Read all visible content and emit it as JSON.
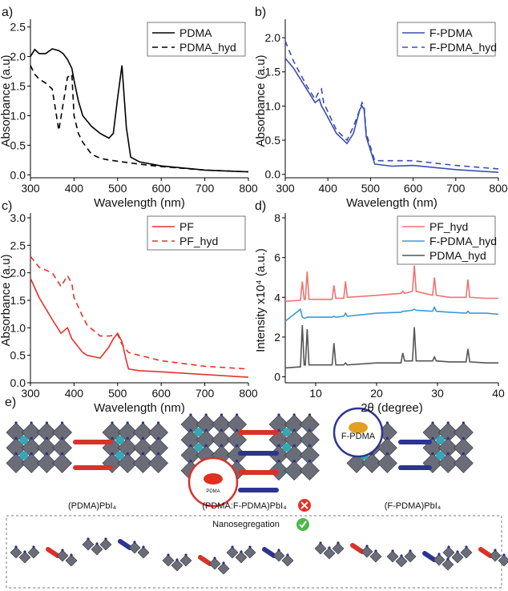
{
  "chart_data": [
    {
      "type": "line",
      "panel": "a)",
      "xlabel": "Wavelength (nm)",
      "ylabel": "Absorbance (a.u)",
      "x": [
        300,
        310,
        320,
        335,
        350,
        365,
        375,
        385,
        395,
        400,
        410,
        420,
        440,
        460,
        480,
        490,
        500,
        510,
        520,
        530,
        550,
        600,
        700,
        800
      ],
      "series": [
        {
          "name": "PDMA",
          "color": "#000000",
          "style": "solid",
          "values": [
            2.0,
            2.12,
            2.05,
            2.05,
            2.13,
            2.1,
            2.05,
            1.95,
            1.8,
            1.6,
            1.25,
            1.0,
            0.82,
            0.7,
            0.62,
            0.7,
            1.3,
            1.85,
            0.8,
            0.3,
            0.22,
            0.15,
            0.08,
            0.05
          ]
        },
        {
          "name": "PDMA_hyd",
          "color": "#000000",
          "style": "dashed",
          "values": [
            1.85,
            1.7,
            1.62,
            1.55,
            1.45,
            0.75,
            1.2,
            1.65,
            1.7,
            1.0,
            0.7,
            0.55,
            0.35,
            0.28,
            0.25,
            0.24,
            0.23,
            0.22,
            0.21,
            0.2,
            0.18,
            0.14,
            0.08,
            0.05
          ]
        }
      ],
      "xlim": [
        300,
        800
      ],
      "xticks": [
        300,
        400,
        500,
        600,
        700,
        800
      ],
      "ylim": [
        -0.05,
        2.55
      ],
      "yticks": [
        {
          "value": 0,
          "label": "0.0"
        },
        0.5,
        {
          "value": 1,
          "label": "1.0"
        },
        1.5,
        {
          "value": 2,
          "label": "2.0"
        },
        2.5
      ],
      "legend": "upper right"
    },
    {
      "type": "line",
      "panel": "b)",
      "xlabel": "Wavelength (nm)",
      "ylabel": "Absorbance (a.u)",
      "x": [
        300,
        320,
        350,
        370,
        380,
        385,
        390,
        420,
        445,
        460,
        475,
        480,
        485,
        490,
        510,
        550,
        600,
        700,
        800
      ],
      "series": [
        {
          "name": "F-PDMA",
          "color": "#3b4eaf",
          "style": "solid",
          "values": [
            1.7,
            1.55,
            1.25,
            1.05,
            1.1,
            1.0,
            0.95,
            0.6,
            0.45,
            0.6,
            0.95,
            1.0,
            0.95,
            0.55,
            0.15,
            0.12,
            0.13,
            0.07,
            0.03
          ]
        },
        {
          "name": "F-PDMA_hyd",
          "color": "#3b4eaf",
          "style": "dashed",
          "values": [
            1.95,
            1.65,
            1.3,
            1.1,
            1.22,
            1.25,
            1.05,
            0.65,
            0.5,
            0.7,
            0.95,
            1.05,
            1.0,
            0.6,
            0.2,
            0.2,
            0.2,
            0.13,
            0.08
          ]
        }
      ],
      "xlim": [
        300,
        800
      ],
      "xticks": [
        300,
        400,
        500,
        600,
        700,
        800
      ],
      "ylim": [
        -0.05,
        2.2
      ],
      "yticks": [
        {
          "value": 0,
          "label": "0.0"
        },
        0.5,
        {
          "value": 1,
          "label": "1.0"
        },
        1.5,
        {
          "value": 2,
          "label": "2.0"
        }
      ],
      "legend": "upper right"
    },
    {
      "type": "line",
      "panel": "c)",
      "xlabel": "Wavelength (nm)",
      "ylabel": "Absorbance (a.u)",
      "x": [
        300,
        320,
        350,
        370,
        385,
        395,
        400,
        420,
        430,
        460,
        480,
        490,
        500,
        510,
        520,
        525,
        550,
        600,
        700,
        800
      ],
      "series": [
        {
          "name": "PF",
          "color": "#e8312a",
          "style": "solid",
          "values": [
            1.9,
            1.55,
            1.15,
            0.9,
            1.0,
            0.8,
            0.75,
            0.55,
            0.5,
            0.45,
            0.65,
            0.8,
            0.9,
            0.75,
            0.4,
            0.25,
            0.22,
            0.2,
            0.15,
            0.1
          ]
        },
        {
          "name": "PF_hyd",
          "color": "#e8312a",
          "style": "dashed",
          "values": [
            2.3,
            2.1,
            2.0,
            1.75,
            1.95,
            1.8,
            1.55,
            1.2,
            1.05,
            0.85,
            0.85,
            0.86,
            0.88,
            0.7,
            0.6,
            0.55,
            0.5,
            0.4,
            0.3,
            0.25
          ]
        }
      ],
      "xlim": [
        300,
        800
      ],
      "xticks": [
        300,
        400,
        500,
        600,
        700,
        800
      ],
      "ylim": [
        0,
        3
      ],
      "yticks": [
        {
          "value": 0,
          "label": "0.0"
        },
        0.5,
        {
          "value": 1,
          "label": "1.0"
        },
        1.5,
        {
          "value": 2,
          "label": "2.0"
        },
        2.5,
        {
          "value": 3,
          "label": "3.0"
        }
      ],
      "legend": "upper right"
    },
    {
      "type": "line",
      "panel": "d)",
      "xlabel": "2θ (degree)",
      "ylabel": "Intensity x10⁴ (a.u.)",
      "x": [
        5,
        7.5,
        7.8,
        8.1,
        8.3,
        8.6,
        8.9,
        12.7,
        13,
        13.3,
        14.6,
        14.9,
        15.2,
        20,
        24,
        24.3,
        24.6,
        25.9,
        26.2,
        26.5,
        29.2,
        29.5,
        29.8,
        32,
        34.7,
        35,
        35.3,
        38,
        40
      ],
      "series": [
        {
          "name": "PF_hyd",
          "color": "#f07272",
          "style": "solid",
          "values": [
            3.8,
            3.85,
            4.8,
            3.9,
            3.9,
            5.3,
            3.9,
            3.9,
            4.6,
            3.95,
            3.95,
            4.8,
            4.0,
            4.1,
            4.2,
            4.3,
            4.2,
            4.3,
            5.6,
            4.3,
            4.1,
            5.0,
            4.1,
            4.0,
            4.0,
            4.9,
            4.0,
            3.95,
            3.95
          ]
        },
        {
          "name": "F-PDMA_hyd",
          "color": "#3a9ad9",
          "style": "solid",
          "values": [
            2.8,
            3.4,
            3.0,
            2.95,
            2.95,
            3.0,
            3.0,
            3.0,
            3.05,
            3.0,
            3.05,
            3.2,
            3.05,
            3.2,
            3.25,
            3.3,
            3.3,
            3.35,
            3.4,
            3.35,
            3.3,
            3.5,
            3.3,
            3.25,
            3.2,
            3.3,
            3.2,
            3.2,
            3.15
          ]
        },
        {
          "name": "PDMA_hyd",
          "color": "#555555",
          "style": "solid",
          "values": [
            0.45,
            0.5,
            2.6,
            0.6,
            0.6,
            2.4,
            0.6,
            0.6,
            1.7,
            0.6,
            0.6,
            0.7,
            0.6,
            0.7,
            0.7,
            1.2,
            0.8,
            0.8,
            2.5,
            0.8,
            0.8,
            1.0,
            0.8,
            0.75,
            0.75,
            1.4,
            0.75,
            0.7,
            0.7
          ]
        }
      ],
      "xlim": [
        5,
        40
      ],
      "xticks": [
        10,
        20,
        30,
        40
      ],
      "ylim": [
        -0.3,
        8
      ],
      "yticks": [
        0,
        2,
        4,
        6,
        8
      ],
      "legend": "upper right"
    }
  ],
  "diagram": {
    "panel": "e)",
    "labels": [
      "(PDMA)PbI₄",
      "(PDMA:F-PDMA)PbI₄",
      "(F-PDMA)PbI₄"
    ],
    "insets": [
      "F-PDMA",
      "PDMA"
    ],
    "caption": "Nanosegregation"
  }
}
